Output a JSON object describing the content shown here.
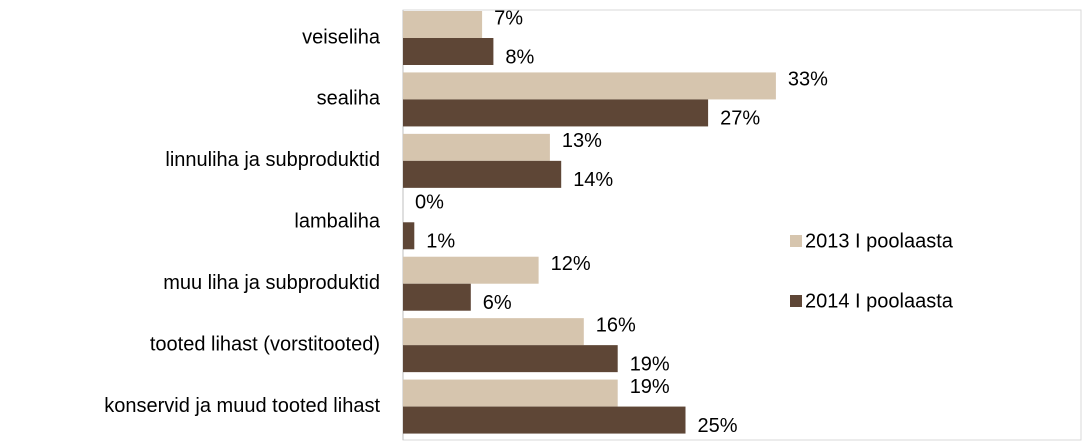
{
  "chart_data": {
    "type": "hbar",
    "categories": [
      "veiseliha",
      "sealiha",
      "linnuliha ja subproduktid",
      "lambaliha",
      "muu liha ja subproduktid",
      "tooted lihast (vorstitooted)",
      "konservid ja muud tooted lihast"
    ],
    "series": [
      {
        "name": "2013 I poolaasta",
        "color": "#d6c5ae",
        "values": [
          7,
          33,
          13,
          0,
          12,
          16,
          19
        ],
        "value_labels": [
          "7%",
          "33%",
          "13%",
          "0%",
          "12%",
          "16%",
          "19%"
        ]
      },
      {
        "name": "2014 I poolaasta",
        "color": "#5e4636",
        "values": [
          8,
          27,
          14,
          1,
          6,
          19,
          25
        ],
        "value_labels": [
          "8%",
          "27%",
          "14%",
          "1%",
          "6%",
          "19%",
          "25%"
        ]
      }
    ],
    "xlim": [
      0,
      60
    ],
    "legend": "right"
  }
}
